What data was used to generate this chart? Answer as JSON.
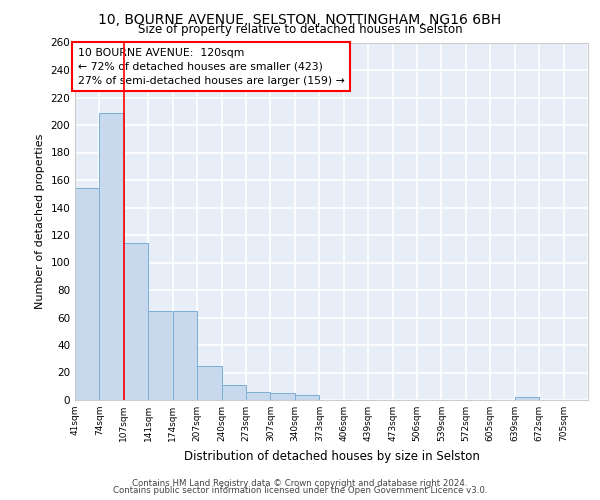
{
  "title1": "10, BOURNE AVENUE, SELSTON, NOTTINGHAM, NG16 6BH",
  "title2": "Size of property relative to detached houses in Selston",
  "xlabel": "Distribution of detached houses by size in Selston",
  "ylabel": "Number of detached properties",
  "bins": [
    "41sqm",
    "74sqm",
    "107sqm",
    "141sqm",
    "174sqm",
    "207sqm",
    "240sqm",
    "273sqm",
    "307sqm",
    "340sqm",
    "373sqm",
    "406sqm",
    "439sqm",
    "473sqm",
    "506sqm",
    "539sqm",
    "572sqm",
    "605sqm",
    "639sqm",
    "672sqm",
    "705sqm"
  ],
  "values": [
    154,
    209,
    114,
    65,
    65,
    25,
    11,
    6,
    5,
    4,
    0,
    0,
    0,
    0,
    0,
    0,
    0,
    0,
    2,
    0,
    0
  ],
  "bar_color": "#c8d9ee",
  "bar_edge_color": "#7bafd4",
  "annotation_line1": "10 BOURNE AVENUE:  120sqm",
  "annotation_line2": "← 72% of detached houses are smaller (423)",
  "annotation_line3": "27% of semi-detached houses are larger (159) →",
  "ylim": [
    0,
    260
  ],
  "yticks": [
    0,
    20,
    40,
    60,
    80,
    100,
    120,
    140,
    160,
    180,
    200,
    220,
    240,
    260
  ],
  "background_color": "#e8eef8",
  "grid_color": "#ffffff",
  "footer1": "Contains HM Land Registry data © Crown copyright and database right 2024.",
  "footer2": "Contains public sector information licensed under the Open Government Licence v3.0."
}
